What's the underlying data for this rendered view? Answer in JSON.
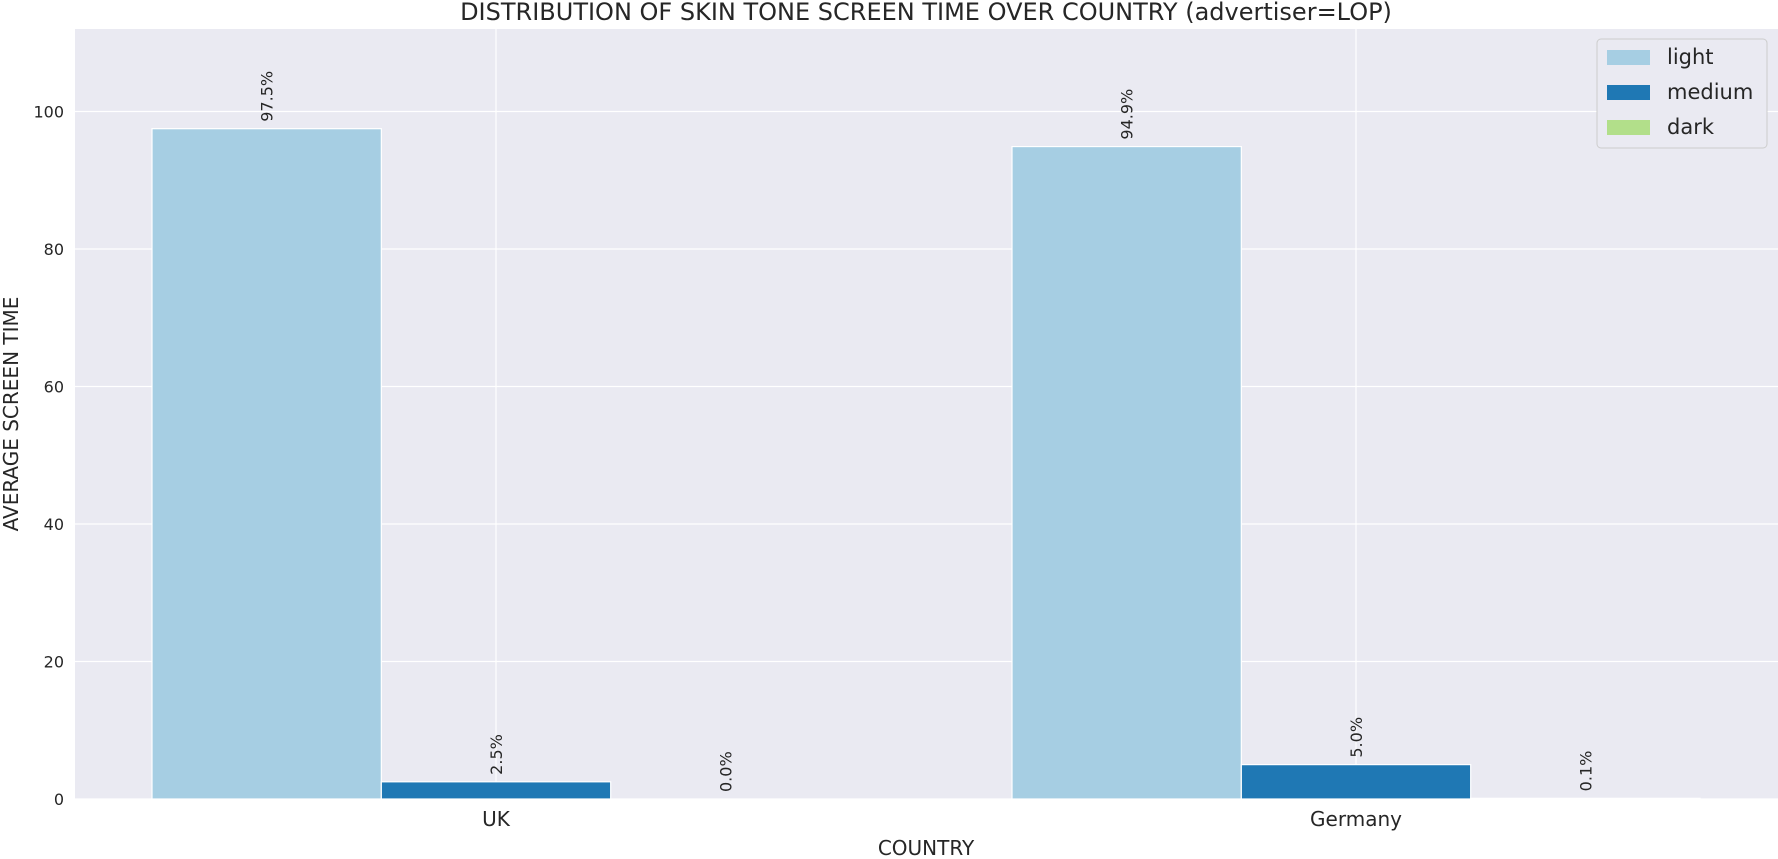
{
  "chart_data": {
    "type": "bar",
    "title": "DISTRIBUTION OF SKIN TONE SCREEN TIME OVER COUNTRY (advertiser=LOP)",
    "xlabel": "COUNTRY",
    "ylabel": "AVERAGE SCREEN TIME",
    "categories": [
      "UK",
      "Germany"
    ],
    "ylim": [
      0,
      112
    ],
    "yticks": [
      0,
      20,
      40,
      60,
      80,
      100
    ],
    "grid": true,
    "legend_position": "top-right",
    "series": [
      {
        "name": "light",
        "color": "#a6cee3",
        "values": [
          97.5,
          94.9
        ],
        "labels": [
          "97.5%",
          "94.9%"
        ]
      },
      {
        "name": "medium",
        "color": "#1f78b4",
        "values": [
          2.5,
          5.0
        ],
        "labels": [
          "2.5%",
          "5.0%"
        ]
      },
      {
        "name": "dark",
        "color": "#b2df8a",
        "values": [
          0.0,
          0.1
        ],
        "labels": [
          "0.0%",
          "0.1%"
        ]
      }
    ]
  }
}
